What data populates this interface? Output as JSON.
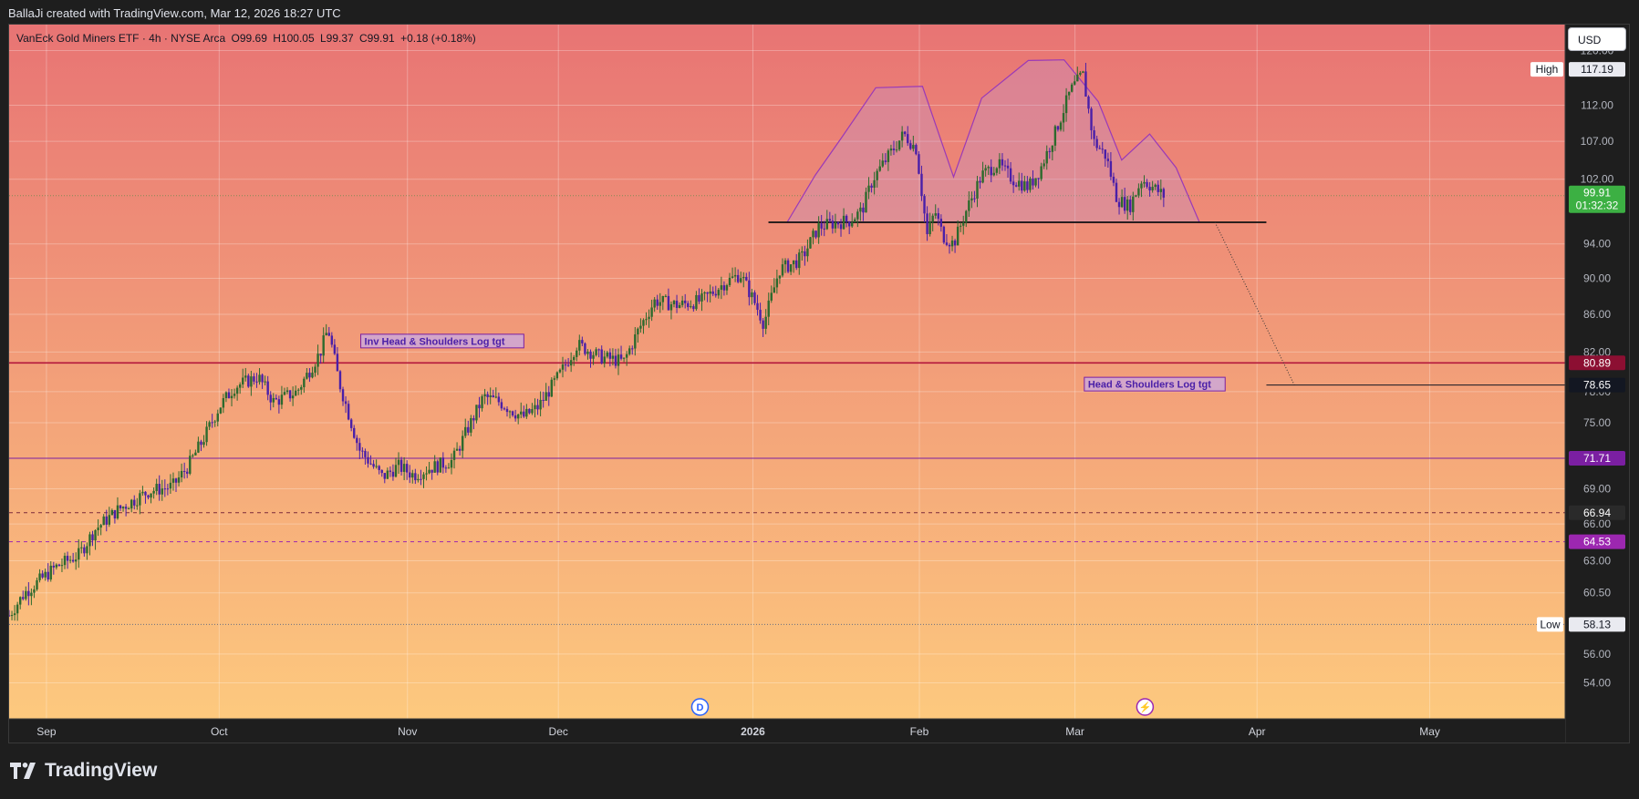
{
  "credit": "BallaJi created with TradingView.com, Mar 12, 2026 18:27 UTC",
  "symbol": {
    "name": "VanEck Gold Miners ETF · 4h · NYSE Arca",
    "open": "O99.69",
    "high": "H100.05",
    "low": "L99.37",
    "close": "C99.91",
    "change": "+0.18 (+0.18%)"
  },
  "currency": "USD",
  "brand": "TradingView",
  "colors": {
    "bg_top": "#e87474",
    "bg_bottom": "#fdc97e",
    "candle_up": "#2d6a2d",
    "candle_down": "#4a1fa8",
    "pattern": "#9a39b8",
    "red_line": "#b3163c",
    "purple_line": "#7b1fa2",
    "last_price": "#3cb043"
  },
  "chart_data": {
    "type": "candlestick",
    "y_scale": "log",
    "ylim": [
      51.6,
      124
    ],
    "y_ticks": [
      "54.00",
      "56.00",
      "60.50",
      "63.00",
      "66.00",
      "69.00",
      "75.00",
      "78.00",
      "82.00",
      "86.00",
      "90.00",
      "94.00",
      "102.00",
      "107.00",
      "112.00",
      "120.00"
    ],
    "x_labels": [
      {
        "label": "Sep",
        "x": 0.024,
        "bold": false
      },
      {
        "label": "Oct",
        "x": 0.135,
        "bold": false
      },
      {
        "label": "Nov",
        "x": 0.256,
        "bold": false
      },
      {
        "label": "Dec",
        "x": 0.353,
        "bold": false
      },
      {
        "label": "2026",
        "x": 0.478,
        "bold": true
      },
      {
        "label": "Feb",
        "x": 0.585,
        "bold": false
      },
      {
        "label": "Mar",
        "x": 0.685,
        "bold": false
      },
      {
        "label": "Apr",
        "x": 0.802,
        "bold": false
      },
      {
        "label": "May",
        "x": 0.913,
        "bold": false
      }
    ],
    "price_path": [
      [
        0.0,
        58.8
      ],
      [
        0.01,
        60.5
      ],
      [
        0.03,
        62.5
      ],
      [
        0.045,
        63.5
      ],
      [
        0.055,
        65.5
      ],
      [
        0.07,
        67.2
      ],
      [
        0.09,
        68.8
      ],
      [
        0.105,
        69.2
      ],
      [
        0.115,
        71.0
      ],
      [
        0.125,
        73.5
      ],
      [
        0.135,
        76.5
      ],
      [
        0.145,
        78.5
      ],
      [
        0.16,
        79.5
      ],
      [
        0.17,
        77.0
      ],
      [
        0.185,
        78.0
      ],
      [
        0.2,
        82.0
      ],
      [
        0.205,
        84.5
      ],
      [
        0.212,
        79.0
      ],
      [
        0.225,
        72.5
      ],
      [
        0.24,
        70.0
      ],
      [
        0.25,
        71.0
      ],
      [
        0.26,
        70.2
      ],
      [
        0.27,
        70.8
      ],
      [
        0.285,
        71.5
      ],
      [
        0.295,
        74.5
      ],
      [
        0.305,
        77.5
      ],
      [
        0.315,
        77.0
      ],
      [
        0.33,
        75.5
      ],
      [
        0.34,
        76.5
      ],
      [
        0.355,
        80.0
      ],
      [
        0.365,
        82.8
      ],
      [
        0.38,
        81.5
      ],
      [
        0.395,
        81.0
      ],
      [
        0.405,
        84.5
      ],
      [
        0.415,
        87.5
      ],
      [
        0.43,
        87.0
      ],
      [
        0.445,
        87.5
      ],
      [
        0.46,
        89.5
      ],
      [
        0.47,
        90.5
      ],
      [
        0.48,
        87.0
      ],
      [
        0.485,
        85.0
      ],
      [
        0.495,
        91.0
      ],
      [
        0.505,
        91.8
      ],
      [
        0.51,
        92.5
      ],
      [
        0.52,
        96.0
      ],
      [
        0.53,
        96.5
      ],
      [
        0.54,
        96.8
      ],
      [
        0.548,
        98.0
      ],
      [
        0.555,
        102.0
      ],
      [
        0.565,
        105.0
      ],
      [
        0.575,
        108.0
      ],
      [
        0.583,
        106.0
      ],
      [
        0.59,
        95.0
      ],
      [
        0.595,
        98.0
      ],
      [
        0.6,
        95.0
      ],
      [
        0.607,
        94.0
      ],
      [
        0.615,
        98.0
      ],
      [
        0.625,
        102.5
      ],
      [
        0.635,
        104.0
      ],
      [
        0.645,
        102.0
      ],
      [
        0.655,
        101.0
      ],
      [
        0.662,
        103.0
      ],
      [
        0.672,
        108.0
      ],
      [
        0.682,
        114.0
      ],
      [
        0.69,
        116.5
      ],
      [
        0.697,
        107.0
      ],
      [
        0.705,
        105.0
      ],
      [
        0.712,
        99.5
      ],
      [
        0.72,
        98.5
      ],
      [
        0.728,
        102.0
      ],
      [
        0.735,
        101.0
      ],
      [
        0.742,
        99.91
      ]
    ],
    "candle_ref": {
      "last_x": 0.742,
      "last": 99.91,
      "high": 117.19,
      "low": 58.13
    },
    "head_shoulders_pattern": [
      [
        0.5,
        96.6
      ],
      [
        0.518,
        102.5
      ],
      [
        0.535,
        107.5
      ],
      [
        0.557,
        114.5
      ],
      [
        0.587,
        114.7
      ],
      [
        0.607,
        102.3
      ],
      [
        0.625,
        113.0
      ],
      [
        0.655,
        118.5
      ],
      [
        0.678,
        118.6
      ],
      [
        0.7,
        112.5
      ],
      [
        0.715,
        104.5
      ],
      [
        0.733,
        108.0
      ],
      [
        0.75,
        103.5
      ],
      [
        0.765,
        96.6
      ]
    ],
    "neckline": {
      "price": 96.6,
      "x_start": 0.488,
      "x_end": 0.808
    },
    "projection": {
      "from": [
        0.775,
        96.6
      ],
      "to": [
        0.826,
        78.65
      ]
    },
    "inv_hs_label": {
      "text": "Inv Head & Shoulders Log tgt",
      "x": 0.226,
      "price": 83.1
    },
    "hs_label": {
      "text": "Head & Shoulders Log tgt",
      "x": 0.691,
      "price": 78.7
    },
    "hs_target_line": {
      "price": 78.65,
      "x_start": 0.808
    },
    "levels": [
      {
        "price": 80.89,
        "label": "80.89",
        "style": "solid",
        "color": "#b3163c",
        "badge": "#8c0f32",
        "width": 1.6
      },
      {
        "price": 78.65,
        "label": "78.65",
        "style": "partial",
        "color": "#131722",
        "badge": "#131722",
        "width": 1
      },
      {
        "price": 71.71,
        "label": "71.71",
        "style": "solid",
        "color": "#7b1fa2",
        "badge": "#7b1fa2",
        "width": 1
      },
      {
        "price": 66.94,
        "label": "66.94",
        "style": "dashed",
        "color": "#7a2a3a",
        "badge": "#2a2a2a",
        "width": 1
      },
      {
        "price": 64.53,
        "label": "64.53",
        "style": "dashed",
        "color": "#9c27b0",
        "badge": "#9c27b0",
        "width": 1
      }
    ],
    "high_marker": {
      "label": "High",
      "value": "117.19",
      "price": 117.19
    },
    "low_marker": {
      "label": "Low",
      "value": "58.13",
      "price": 58.13
    },
    "last_price": {
      "value": "99.91",
      "countdown": "01:32:32",
      "price": 99.91
    },
    "event_markers": [
      {
        "label": "D",
        "x": 0.444
      },
      {
        "label": "⚡",
        "x": 0.73
      }
    ]
  }
}
